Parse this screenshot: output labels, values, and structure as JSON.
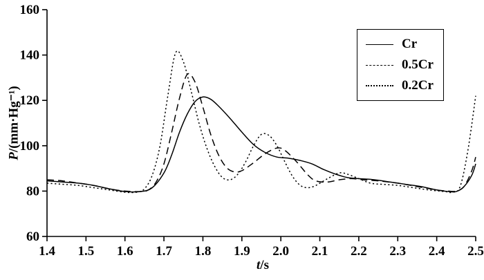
{
  "chart_data": {
    "type": "line",
    "title": "",
    "xlabel": "t/s",
    "ylabel": "P/(mm·Hg⁻¹)",
    "xlabel_var": "t",
    "xlabel_rest": "/s",
    "ylabel_var": "P",
    "ylabel_rest": "/(mm·Hg⁻¹)",
    "xlim": [
      1.4,
      2.5
    ],
    "ylim": [
      60,
      160
    ],
    "x_tick_labels": [
      "1.4",
      "1.5",
      "1.6",
      "1.7",
      "1.8",
      "1.9",
      "2.0",
      "2.1",
      "2.2",
      "2.3",
      "2.4",
      "2.5"
    ],
    "x_ticks": [
      1.4,
      1.5,
      1.6,
      1.7,
      1.8,
      1.9,
      2.0,
      2.1,
      2.2,
      2.3,
      2.4,
      2.5
    ],
    "y_tick_labels": [
      "60",
      "80",
      "100",
      "120",
      "140",
      "160"
    ],
    "y_ticks": [
      60,
      80,
      100,
      120,
      140,
      160
    ],
    "grid": false,
    "legend_position": "top-right",
    "line_color": "#000000",
    "series": [
      {
        "name": "Cr",
        "style": "solid",
        "dash": "",
        "points": [
          [
            1.4,
            84.5
          ],
          [
            1.44,
            84.0
          ],
          [
            1.48,
            83.5
          ],
          [
            1.52,
            82.5
          ],
          [
            1.56,
            81.0
          ],
          [
            1.6,
            79.8
          ],
          [
            1.64,
            79.8
          ],
          [
            1.67,
            81.5
          ],
          [
            1.7,
            88.0
          ],
          [
            1.72,
            96.0
          ],
          [
            1.74,
            106.0
          ],
          [
            1.76,
            114.0
          ],
          [
            1.78,
            119.5
          ],
          [
            1.8,
            121.5
          ],
          [
            1.82,
            120.5
          ],
          [
            1.84,
            117.5
          ],
          [
            1.87,
            112.0
          ],
          [
            1.9,
            106.0
          ],
          [
            1.93,
            100.5
          ],
          [
            1.96,
            97.0
          ],
          [
            1.99,
            95.0
          ],
          [
            2.02,
            94.5
          ],
          [
            2.05,
            93.5
          ],
          [
            2.08,
            92.0
          ],
          [
            2.11,
            89.5
          ],
          [
            2.14,
            87.5
          ],
          [
            2.17,
            86.0
          ],
          [
            2.2,
            85.5
          ],
          [
            2.24,
            85.0
          ],
          [
            2.28,
            84.0
          ],
          [
            2.32,
            83.0
          ],
          [
            2.36,
            82.0
          ],
          [
            2.4,
            80.5
          ],
          [
            2.43,
            79.8
          ],
          [
            2.45,
            79.8
          ],
          [
            2.47,
            82.0
          ],
          [
            2.49,
            87.0
          ],
          [
            2.5,
            92.0
          ]
        ]
      },
      {
        "name": "0.5Cr",
        "style": "dashed",
        "dash": "10 6",
        "points": [
          [
            1.4,
            85.0
          ],
          [
            1.44,
            84.5
          ],
          [
            1.48,
            83.5
          ],
          [
            1.52,
            82.5
          ],
          [
            1.56,
            81.0
          ],
          [
            1.6,
            80.0
          ],
          [
            1.64,
            79.8
          ],
          [
            1.66,
            80.5
          ],
          [
            1.68,
            84.0
          ],
          [
            1.7,
            92.0
          ],
          [
            1.72,
            106.0
          ],
          [
            1.74,
            121.0
          ],
          [
            1.76,
            131.5
          ],
          [
            1.78,
            128.0
          ],
          [
            1.8,
            117.0
          ],
          [
            1.82,
            105.0
          ],
          [
            1.84,
            96.0
          ],
          [
            1.86,
            90.5
          ],
          [
            1.88,
            88.5
          ],
          [
            1.9,
            89.0
          ],
          [
            1.93,
            92.5
          ],
          [
            1.96,
            96.5
          ],
          [
            1.99,
            99.0
          ],
          [
            2.01,
            98.0
          ],
          [
            2.04,
            93.0
          ],
          [
            2.07,
            87.0
          ],
          [
            2.09,
            84.5
          ],
          [
            2.12,
            84.0
          ],
          [
            2.15,
            85.0
          ],
          [
            2.18,
            85.5
          ],
          [
            2.21,
            85.0
          ],
          [
            2.25,
            84.5
          ],
          [
            2.3,
            83.5
          ],
          [
            2.35,
            82.0
          ],
          [
            2.4,
            80.5
          ],
          [
            2.43,
            80.0
          ],
          [
            2.45,
            80.0
          ],
          [
            2.47,
            82.0
          ],
          [
            2.49,
            89.0
          ],
          [
            2.5,
            95.0
          ]
        ]
      },
      {
        "name": "0.2Cr",
        "style": "dotted",
        "dash": "2.2 3.4",
        "points": [
          [
            1.4,
            83.5
          ],
          [
            1.44,
            83.0
          ],
          [
            1.48,
            82.5
          ],
          [
            1.52,
            81.5
          ],
          [
            1.56,
            80.5
          ],
          [
            1.6,
            79.5
          ],
          [
            1.63,
            79.5
          ],
          [
            1.65,
            81.0
          ],
          [
            1.67,
            87.0
          ],
          [
            1.69,
            100.0
          ],
          [
            1.71,
            122.0
          ],
          [
            1.73,
            141.0
          ],
          [
            1.75,
            137.0
          ],
          [
            1.77,
            124.0
          ],
          [
            1.79,
            110.0
          ],
          [
            1.81,
            99.0
          ],
          [
            1.83,
            91.0
          ],
          [
            1.85,
            86.0
          ],
          [
            1.87,
            85.0
          ],
          [
            1.89,
            87.5
          ],
          [
            1.91,
            93.0
          ],
          [
            1.93,
            100.0
          ],
          [
            1.95,
            105.0
          ],
          [
            1.97,
            104.5
          ],
          [
            1.99,
            100.0
          ],
          [
            2.01,
            93.0
          ],
          [
            2.03,
            86.5
          ],
          [
            2.05,
            82.5
          ],
          [
            2.07,
            81.5
          ],
          [
            2.09,
            82.5
          ],
          [
            2.12,
            85.5
          ],
          [
            2.15,
            88.0
          ],
          [
            2.17,
            87.5
          ],
          [
            2.2,
            85.5
          ],
          [
            2.23,
            83.5
          ],
          [
            2.26,
            83.0
          ],
          [
            2.3,
            82.5
          ],
          [
            2.34,
            81.5
          ],
          [
            2.38,
            80.5
          ],
          [
            2.42,
            79.8
          ],
          [
            2.44,
            79.5
          ],
          [
            2.46,
            82.0
          ],
          [
            2.48,
            98.0
          ],
          [
            2.5,
            122.0
          ]
        ]
      }
    ]
  }
}
